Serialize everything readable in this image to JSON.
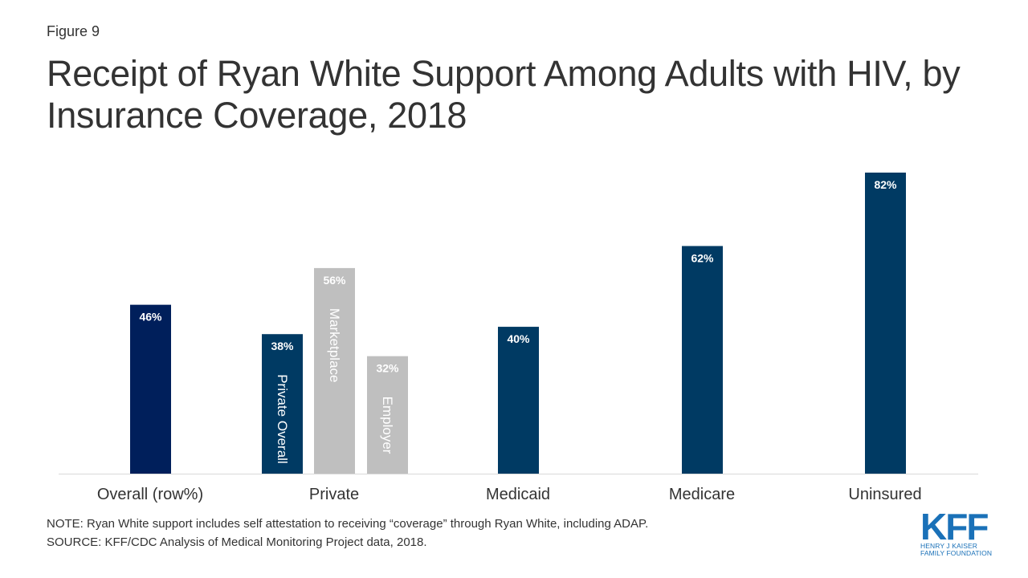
{
  "figure_label": "Figure 9",
  "title": "Receipt of Ryan White Support Among Adults with HIV, by Insurance Coverage, 2018",
  "chart_data": {
    "type": "bar",
    "categories": [
      "Overall (row%)",
      "Private",
      "Medicaid",
      "Medicare",
      "Uninsured"
    ],
    "bars": [
      {
        "category": "Overall (row%)",
        "value": 46,
        "label": "46%",
        "inner_label": "",
        "color": "#001f5b"
      },
      {
        "category": "Private",
        "value": 38,
        "label": "38%",
        "inner_label": "Private Overall",
        "color": "#003a63"
      },
      {
        "category": "Private",
        "value": 56,
        "label": "56%",
        "inner_label": "Marketplace",
        "color": "#bfbfbf"
      },
      {
        "category": "Private",
        "value": 32,
        "label": "32%",
        "inner_label": "Employer",
        "color": "#bfbfbf"
      },
      {
        "category": "Medicaid",
        "value": 40,
        "label": "40%",
        "inner_label": "",
        "color": "#003a63"
      },
      {
        "category": "Medicare",
        "value": 62,
        "label": "62%",
        "inner_label": "",
        "color": "#003a63"
      },
      {
        "category": "Uninsured",
        "value": 82,
        "label": "82%",
        "inner_label": "",
        "color": "#003a63"
      }
    ],
    "ylim": [
      0,
      82
    ],
    "grid": false,
    "legend": "none"
  },
  "notes": {
    "note": "NOTE: Ryan White support includes self attestation to receiving “coverage” through Ryan White, including ADAP.",
    "source": "SOURCE: KFF/CDC Analysis of Medical Monitoring Project data, 2018."
  },
  "logo": {
    "mark": "KFF",
    "line1": "HENRY J KAISER",
    "line2": "FAMILY FOUNDATION"
  }
}
